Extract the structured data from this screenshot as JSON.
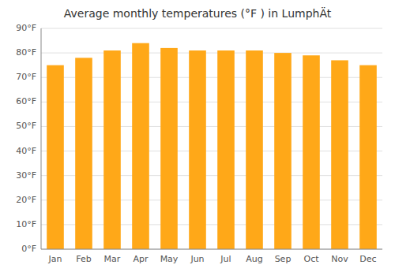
{
  "chart_data": {
    "type": "bar",
    "title": "Average monthly temperatures (°F ) in LumphÄt",
    "categories": [
      "Jan",
      "Feb",
      "Mar",
      "Apr",
      "May",
      "Jun",
      "Jul",
      "Aug",
      "Sep",
      "Oct",
      "Nov",
      "Dec"
    ],
    "values": [
      75,
      78,
      81,
      84,
      82,
      81,
      81,
      81,
      80,
      79,
      77,
      75
    ],
    "color": "#FFA818",
    "ylim": [
      0,
      90
    ],
    "yticks": [
      {
        "value": 0,
        "label": "0°F"
      },
      {
        "value": 10,
        "label": "10°F"
      },
      {
        "value": 20,
        "label": "20°F"
      },
      {
        "value": 30,
        "label": "30°F"
      },
      {
        "value": 40,
        "label": "40°F"
      },
      {
        "value": 50,
        "label": "50°F"
      },
      {
        "value": 60,
        "label": "60°F"
      },
      {
        "value": 70,
        "label": "70°F"
      },
      {
        "value": 80,
        "label": "80°F"
      },
      {
        "value": 90,
        "label": "90°F"
      }
    ],
    "grid": true
  }
}
